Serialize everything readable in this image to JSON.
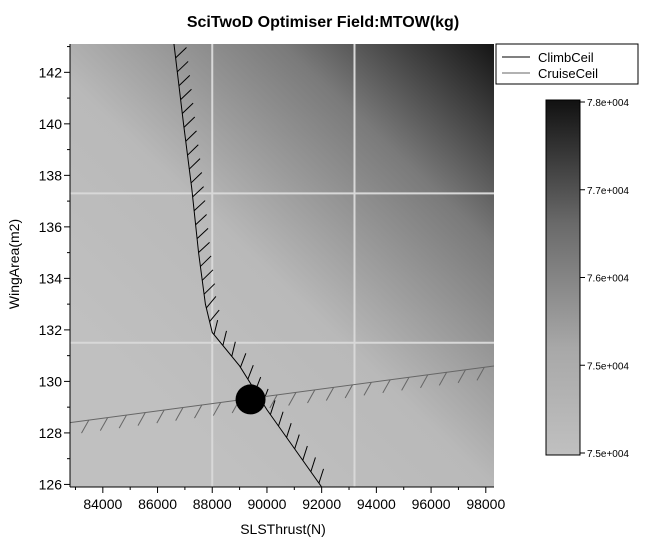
{
  "chart_data": {
    "type": "heatmap",
    "title": "SciTwoD Optimiser Field:MTOW(kg)",
    "xlabel": "SLSThrust(N)",
    "ylabel": "WingArea(m2)",
    "xlim": [
      82800,
      98300
    ],
    "ylim": [
      125.9,
      143.1
    ],
    "x_ticks": [
      84000,
      86000,
      88000,
      90000,
      92000,
      94000,
      96000,
      98000
    ],
    "x_tick_labels": [
      "84000",
      "86000",
      "88000",
      "90000",
      "92000",
      "94000",
      "96000",
      "98000"
    ],
    "y_ticks": [
      126,
      128,
      130,
      132,
      134,
      136,
      138,
      140,
      142
    ],
    "y_tick_labels": [
      "126",
      "128",
      "130",
      "132",
      "134",
      "136",
      "138",
      "140",
      "142"
    ],
    "grid": true,
    "legend_position": "top-right",
    "series": [
      {
        "name": "ClimbCeil",
        "color": "#000000",
        "x": [
          86600,
          86950,
          87250,
          87500,
          87750,
          88000,
          89000,
          90000,
          91000,
          92000
        ],
        "y": [
          143.1,
          140.0,
          137.5,
          135.0,
          133.0,
          131.9,
          130.6,
          128.9,
          127.4,
          125.9
        ]
      },
      {
        "name": "CruiseCeil",
        "color": "#666666",
        "x": [
          82800,
          98300
        ],
        "y": [
          128.4,
          130.6
        ]
      }
    ],
    "optimum_point": {
      "x": 89400,
      "y": 129.3
    },
    "colorbar": {
      "min": 75000,
      "max": 78000,
      "tick_labels": [
        "7.8e+004",
        "7.7e+004",
        "7.6e+004",
        "7.5e+004",
        "7.5e+004"
      ],
      "colors": [
        "#111111",
        "#c0c0c0"
      ]
    }
  }
}
